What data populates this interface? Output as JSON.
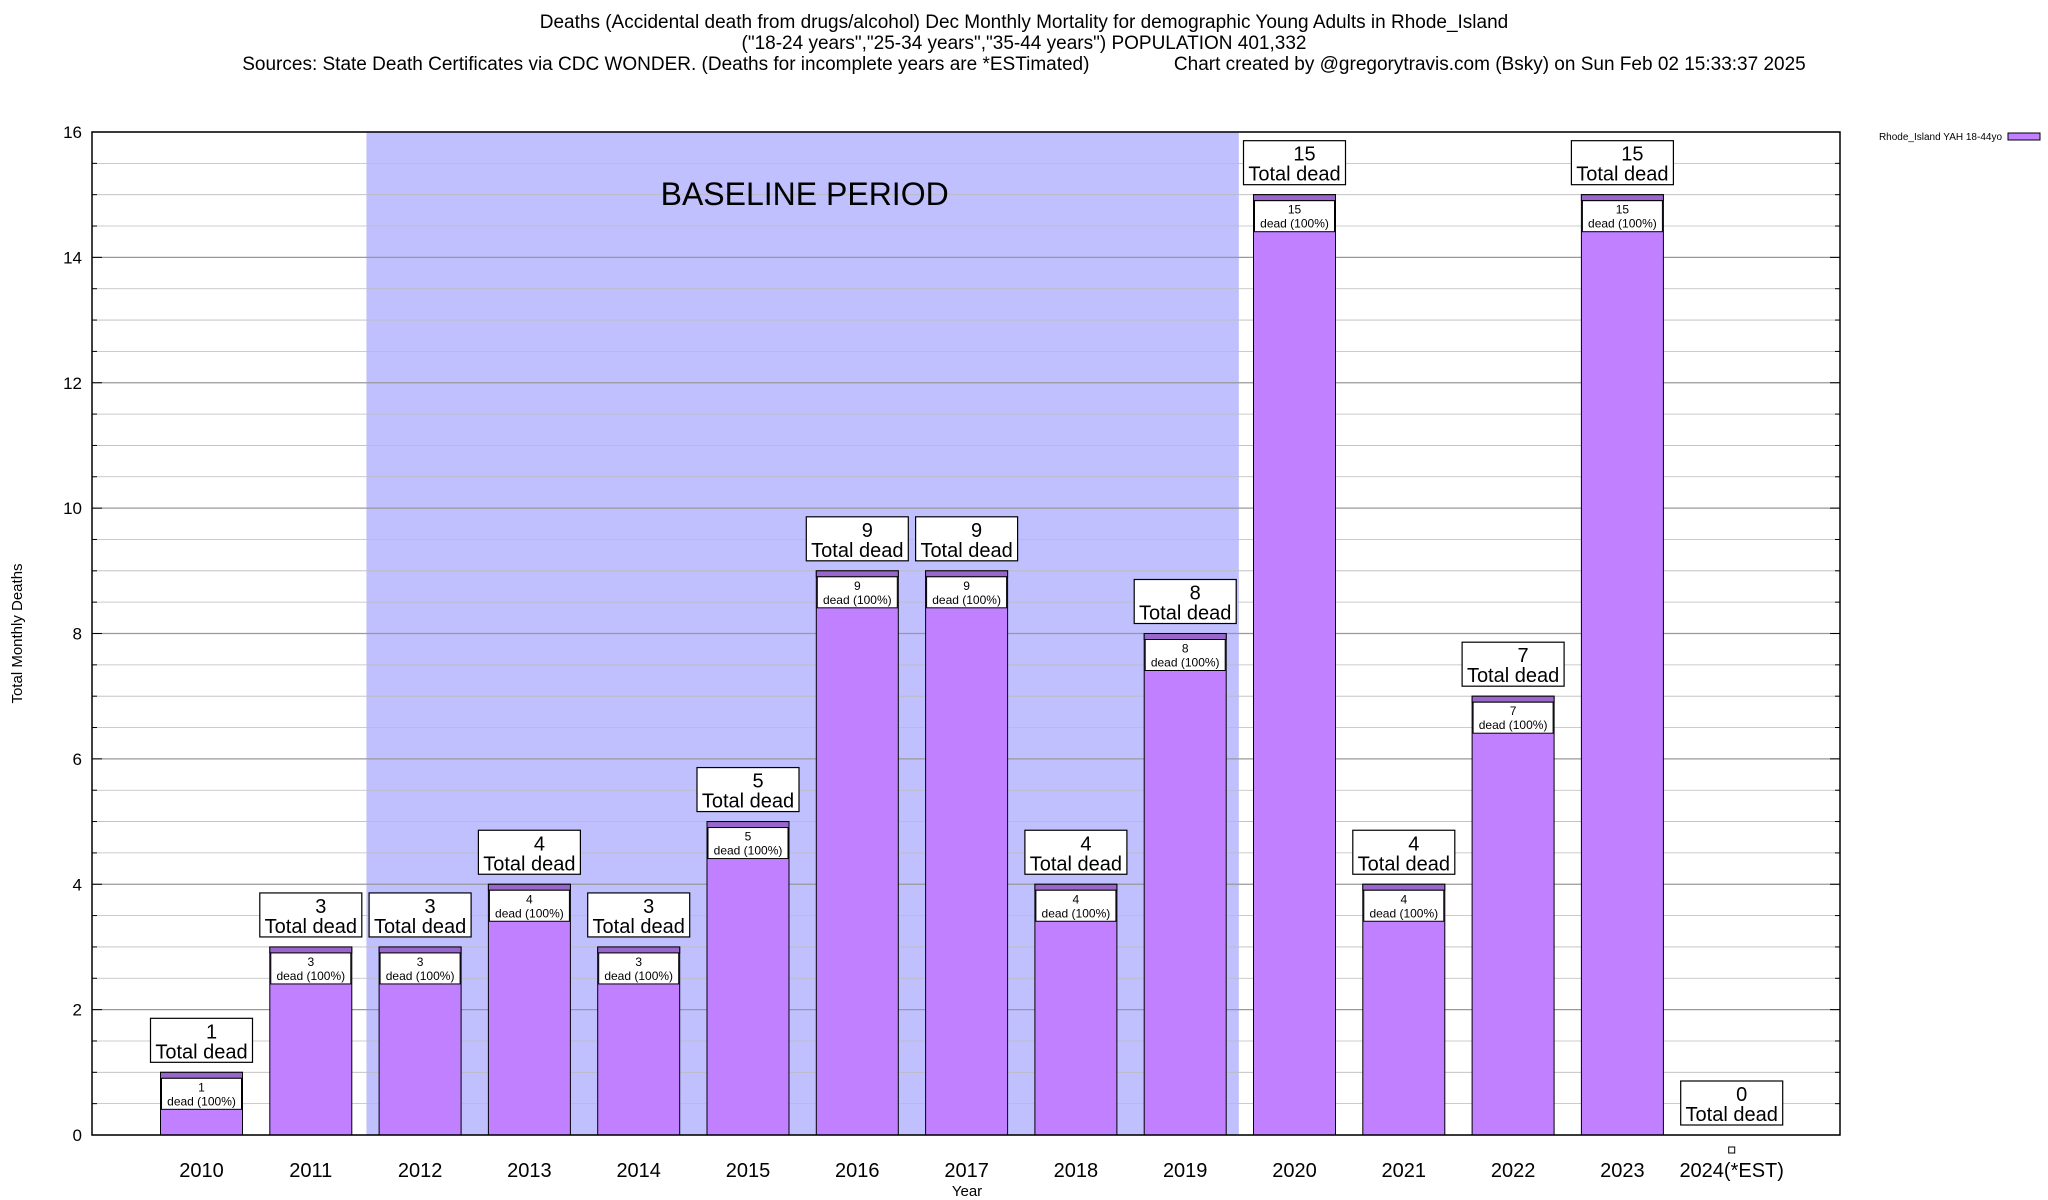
{
  "header": {
    "title_line1": "Deaths (Accidental death from drugs/alcohol) Dec Monthly Mortality for demographic Young Adults in Rhode_Island",
    "title_line2": "(\"18-24 years\",\"25-34 years\",\"35-44 years\") POPULATION 401,332",
    "title_line3": "Sources: State Death Certificates via CDC WONDER. (Deaths for incomplete years are *ESTimated)                Chart created by @gregorytravis.com (Bsky) on Sun Feb 02 15:33:37 2025"
  },
  "chart_data": {
    "type": "bar",
    "categories": [
      "2010",
      "2011",
      "2012",
      "2013",
      "2014",
      "2015",
      "2016",
      "2017",
      "2018",
      "2019",
      "2020",
      "2021",
      "2022",
      "2023",
      "2024(*EST)"
    ],
    "series": [
      {
        "name": "Rhode_Island YAH 18-44yo",
        "values": [
          1,
          3,
          3,
          4,
          3,
          5,
          9,
          9,
          4,
          8,
          15,
          4,
          7,
          15,
          0
        ]
      }
    ],
    "total_labels": [
      "1\nTotal dead",
      "3\nTotal dead",
      "3\nTotal dead",
      "4\nTotal dead",
      "3\nTotal dead",
      "5\nTotal dead",
      "9\nTotal dead",
      "9\nTotal dead",
      "4\nTotal dead",
      "8\nTotal dead",
      "15\nTotal dead",
      "4\nTotal dead",
      "7\nTotal dead",
      "15\nTotal dead",
      "0\nTotal dead"
    ],
    "bar_labels": [
      "1\ndead (100%)",
      "3\ndead (100%)",
      "3\ndead (100%)",
      "4\ndead (100%)",
      "3\ndead (100%)",
      "5\ndead (100%)",
      "9\ndead (100%)",
      "9\ndead (100%)",
      "4\ndead (100%)",
      "8\ndead (100%)",
      "15\ndead (100%)",
      "4\ndead (100%)",
      "7\ndead (100%)",
      "15\ndead (100%)",
      ""
    ],
    "xlabel": "Year",
    "ylabel": "Total Monthly Deaths",
    "ylim": [
      0,
      16
    ],
    "yticks": [
      0,
      2,
      4,
      6,
      8,
      10,
      12,
      14,
      16
    ],
    "grid": true,
    "legend": "top-right",
    "baseline_period": {
      "label": "BASELINE PERIOD",
      "from": "2012",
      "to": "2019"
    },
    "colors": {
      "bar": "#c080ff",
      "bar_top": "#9966cc",
      "baseline": "#c0c0ff",
      "grid": "#aaaaaa"
    }
  }
}
